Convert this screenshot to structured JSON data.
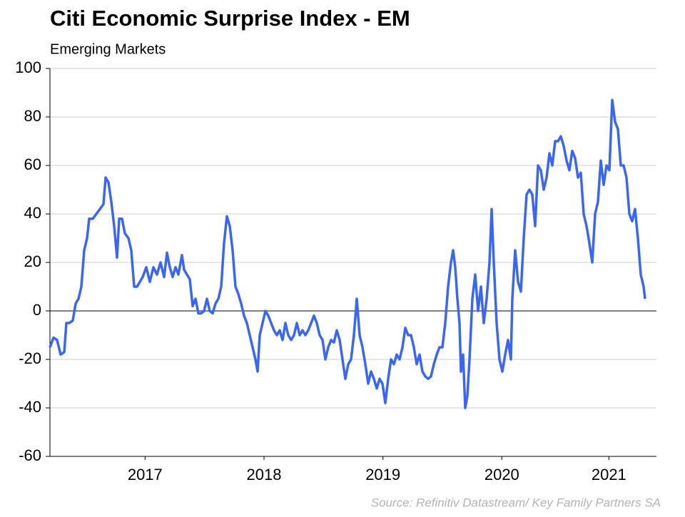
{
  "chart_data": {
    "type": "line",
    "title": "Citi Economic Surprise Index - EM",
    "subtitle": "Emerging Markets",
    "source": "Source: Refinitiv Datastream/ Key Family Partners SA",
    "color": "#3a66f0",
    "grid": true,
    "xlim": [
      2016.7,
      2021.8
    ],
    "xticks": [
      {
        "value": 2017.5,
        "label": "2017"
      },
      {
        "value": 2018.5,
        "label": "2018"
      },
      {
        "value": 2019.5,
        "label": "2019"
      },
      {
        "value": 2020.5,
        "label": "2020"
      },
      {
        "value": 2021.4,
        "label": "2021"
      }
    ],
    "ylim": [
      -60,
      100
    ],
    "yticks": [
      -60,
      -40,
      -20,
      0,
      20,
      40,
      60,
      80,
      100
    ],
    "x": [
      2016.7,
      2016.73,
      2016.76,
      2016.79,
      2016.82,
      2016.838,
      2016.862,
      2016.892,
      2016.916,
      2016.94,
      2016.964,
      2016.988,
      2017.012,
      2017.03,
      2017.06,
      2017.09,
      2017.12,
      2017.15,
      2017.168,
      2017.192,
      2017.216,
      2017.24,
      2017.264,
      2017.282,
      2017.306,
      2017.33,
      2017.36,
      2017.384,
      2017.408,
      2017.432,
      2017.456,
      2017.48,
      2017.51,
      2017.54,
      2017.57,
      2017.6,
      2017.63,
      2017.66,
      2017.684,
      2017.708,
      2017.732,
      2017.756,
      2017.78,
      2017.81,
      2017.828,
      2017.852,
      2017.876,
      2017.9,
      2017.924,
      2017.948,
      2017.972,
      2017.996,
      2018.02,
      2018.044,
      2018.068,
      2018.092,
      2018.116,
      2018.14,
      2018.164,
      2018.188,
      2018.212,
      2018.236,
      2018.26,
      2018.284,
      2018.308,
      2018.332,
      2018.356,
      2018.38,
      2018.404,
      2018.428,
      2018.446,
      2018.464,
      2018.488,
      2018.512,
      2018.536,
      2018.56,
      2018.584,
      2018.608,
      2018.632,
      2018.656,
      2018.68,
      2018.704,
      2018.728,
      2018.752,
      2018.776,
      2018.8,
      2018.824,
      2018.848,
      2018.872,
      2018.896,
      2018.92,
      2018.944,
      2018.968,
      2018.992,
      2019.016,
      2019.04,
      2019.064,
      2019.088,
      2019.112,
      2019.136,
      2019.16,
      2019.184,
      2019.208,
      2019.232,
      2019.256,
      2019.28,
      2019.304,
      2019.328,
      2019.352,
      2019.376,
      2019.4,
      2019.424,
      2019.448,
      2019.472,
      2019.496,
      2019.52,
      2019.544,
      2019.568,
      2019.592,
      2019.616,
      2019.64,
      2019.664,
      2019.688,
      2019.712,
      2019.736,
      2019.76,
      2019.784,
      2019.808,
      2019.832,
      2019.856,
      2019.88,
      2019.904,
      2019.928,
      2019.952,
      2019.976,
      2020.0,
      2020.024,
      2020.048,
      2020.072,
      2020.09,
      2020.108,
      2020.126,
      2020.144,
      2020.156,
      2020.174,
      2020.192,
      2020.21,
      2020.228,
      2020.252,
      2020.276,
      2020.3,
      2020.324,
      2020.348,
      2020.372,
      2020.396,
      2020.414,
      2020.432,
      2020.456,
      2020.48,
      2020.504,
      2020.528,
      2020.552,
      2020.576,
      2020.588,
      2020.612,
      2020.636,
      2020.66,
      2020.684,
      2020.708,
      2020.732,
      2020.756,
      2020.78,
      2020.804,
      2020.828,
      2020.852,
      2020.876,
      2020.9,
      2020.924,
      2020.948,
      2020.972,
      2020.996,
      2021.02,
      2021.044,
      2021.068,
      2021.092,
      2021.116,
      2021.14,
      2021.164,
      2021.188,
      2021.212,
      2021.236,
      2021.26,
      2021.284,
      2021.308,
      2021.332,
      2021.356,
      2021.38,
      2021.404,
      2021.428,
      2021.452,
      2021.476,
      2021.5,
      2021.524,
      2021.548,
      2021.572,
      2021.596,
      2021.62,
      2021.644,
      2021.668,
      2021.692,
      2021.704
    ],
    "values": [
      -15,
      -11,
      -12,
      -18,
      -17,
      -5,
      -5,
      -4,
      3,
      5,
      10,
      25,
      30,
      38,
      38,
      40,
      42,
      44,
      55,
      53,
      45,
      35,
      22,
      38,
      38,
      32,
      30,
      25,
      10,
      10,
      12,
      14,
      18,
      12,
      18,
      15,
      20,
      14,
      24,
      18,
      14,
      18,
      15,
      23,
      17,
      15,
      13,
      2,
      5,
      -1,
      -1,
      0,
      5,
      0,
      -1,
      3,
      5,
      10,
      28,
      39,
      35,
      25,
      10,
      7,
      3,
      -2,
      -5,
      -10,
      -15,
      -20,
      -25,
      -10,
      -5,
      0,
      -2,
      -5,
      -8,
      -10,
      -8,
      -12,
      -5,
      -10,
      -12,
      -10,
      -5,
      -10,
      -8,
      -10,
      -8,
      -5,
      -2,
      -5,
      -10,
      -12,
      -20,
      -15,
      -12,
      -13,
      -8,
      -12,
      -20,
      -28,
      -22,
      -20,
      -10,
      5,
      -10,
      -15,
      -22,
      -30,
      -25,
      -28,
      -32,
      -28,
      -30,
      -38,
      -28,
      -20,
      -22,
      -18,
      -20,
      -15,
      -7,
      -10,
      -10,
      -15,
      -22,
      -18,
      -25,
      -27,
      -28,
      -27,
      -22,
      -18,
      -15,
      -15,
      -5,
      10,
      20,
      25,
      18,
      5,
      -5,
      -25,
      -18,
      -40,
      -35,
      -20,
      5,
      15,
      0,
      10,
      -5,
      5,
      20,
      42,
      20,
      -5,
      -20,
      -25,
      -18,
      -12,
      -20,
      5,
      25,
      12,
      8,
      30,
      48,
      50,
      48,
      35,
      60,
      58,
      50,
      55,
      65,
      60,
      70,
      70,
      72,
      68,
      62,
      58,
      66,
      63,
      55,
      57,
      40,
      35,
      28,
      20,
      40,
      45,
      62,
      52,
      60,
      58,
      87,
      78,
      75,
      60,
      60,
      55,
      40,
      37,
      42,
      30,
      15,
      10,
      5
    ]
  }
}
